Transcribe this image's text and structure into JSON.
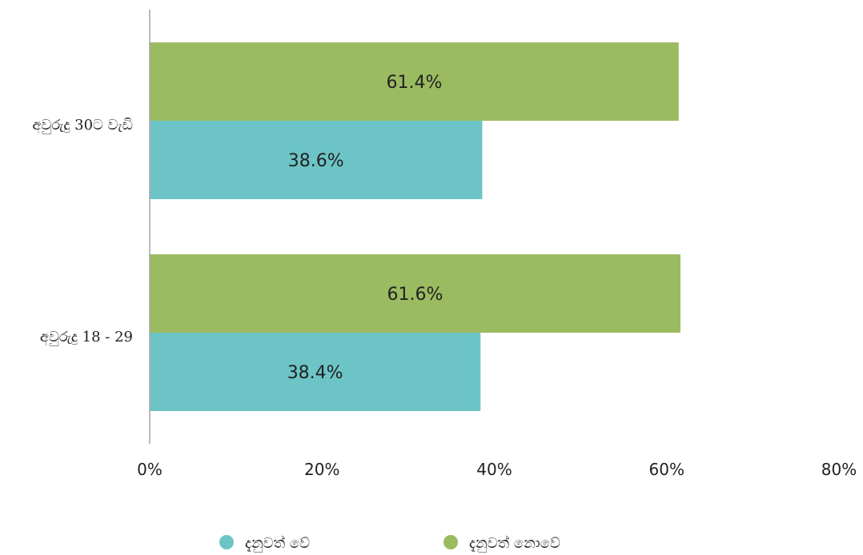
{
  "chart_data": {
    "type": "bar",
    "orientation": "horizontal",
    "categories": [
      "අවුරුදු 30ට වැඩි",
      "අවුරුදු 18 - 29"
    ],
    "series": [
      {
        "name": "දැනුවත් නොවේ",
        "values": [
          61.4,
          61.6
        ],
        "labels": [
          "61.4%",
          "61.6%"
        ],
        "color": "#9bbb61"
      },
      {
        "name": "දැනුවත් වේ",
        "values": [
          38.6,
          38.4
        ],
        "labels": [
          "38.6%",
          "38.4%"
        ],
        "color": "#6cc4c6"
      }
    ],
    "legend_order": [
      1,
      0
    ],
    "xlim": [
      0,
      80
    ],
    "x_ticks": [
      0,
      20,
      40,
      60,
      80
    ],
    "x_tick_labels": [
      "0%",
      "20%",
      "40%",
      "60%",
      "80%"
    ],
    "grid": false,
    "legend": "bottom"
  }
}
